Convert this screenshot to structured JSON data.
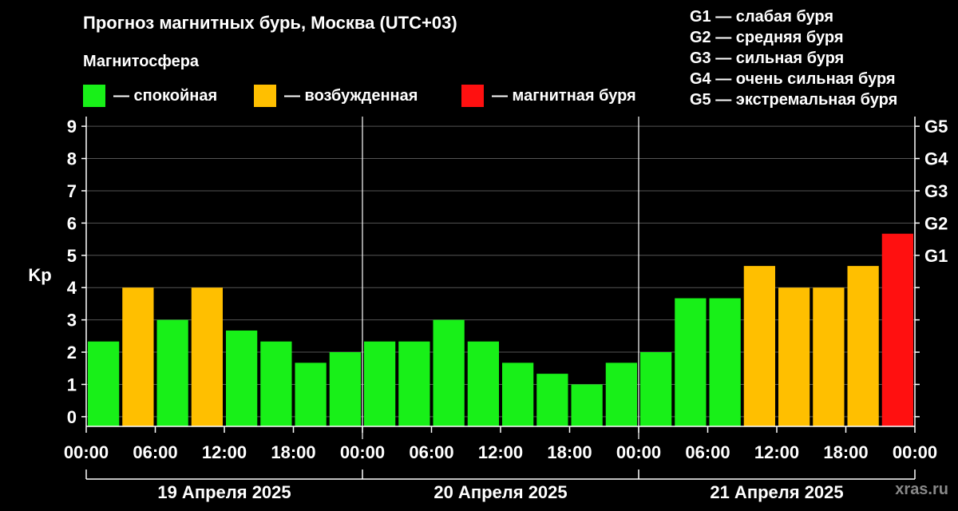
{
  "title": "Прогноз магнитных бурь, Москва (UTC+03)",
  "subtitle": "Магнитосфера",
  "legend": [
    {
      "label": "— спокойная",
      "color": "#18f018"
    },
    {
      "label": "— возбужденная",
      "color": "#ffbf00"
    },
    {
      "label": "— магнитная буря",
      "color": "#ff1010"
    }
  ],
  "g_legend": [
    "G1 — слабая буря",
    "G2 — средняя буря",
    "G3 — сильная буря",
    "G4 — очень сильная буря",
    "G5 — экстремальная буря"
  ],
  "watermark": "xras.ru",
  "chart_data": {
    "type": "bar",
    "ylabel": "Kp",
    "ylim": [
      -0.3,
      9.3
    ],
    "y_ticks": [
      0,
      1,
      2,
      3,
      4,
      5,
      6,
      7,
      8,
      9
    ],
    "right_ticks": [
      {
        "value": 5,
        "label": "G1"
      },
      {
        "value": 6,
        "label": "G2"
      },
      {
        "value": 7,
        "label": "G3"
      },
      {
        "value": 8,
        "label": "G4"
      },
      {
        "value": 9,
        "label": "G5"
      },
      {
        "value": 0,
        "label": ""
      },
      {
        "value": 1,
        "label": ""
      },
      {
        "value": 2,
        "label": ""
      },
      {
        "value": 3,
        "label": ""
      },
      {
        "value": 4,
        "label": ""
      }
    ],
    "x_tick_labels": [
      "00:00",
      "06:00",
      "12:00",
      "18:00",
      "00:00",
      "06:00",
      "12:00",
      "18:00",
      "00:00",
      "06:00",
      "12:00",
      "18:00",
      "00:00"
    ],
    "days": [
      "19 Апреля 2025",
      "20 Апреля 2025",
      "21 Апреля 2025"
    ],
    "values": [
      2.33,
      4.0,
      3.0,
      4.0,
      2.67,
      2.33,
      1.67,
      2.0,
      2.33,
      2.33,
      3.0,
      2.33,
      1.67,
      1.33,
      1.0,
      1.67,
      2.0,
      3.67,
      3.67,
      4.67,
      4.0,
      4.0,
      4.67,
      5.67
    ],
    "categories": [
      "quiet",
      "active",
      "quiet",
      "active",
      "quiet",
      "quiet",
      "quiet",
      "quiet",
      "quiet",
      "quiet",
      "quiet",
      "quiet",
      "quiet",
      "quiet",
      "quiet",
      "quiet",
      "quiet",
      "quiet",
      "quiet",
      "active",
      "active",
      "active",
      "active",
      "storm"
    ],
    "colors": {
      "quiet": "#18f018",
      "active": "#ffbf00",
      "storm": "#ff1010"
    },
    "grid": true
  }
}
